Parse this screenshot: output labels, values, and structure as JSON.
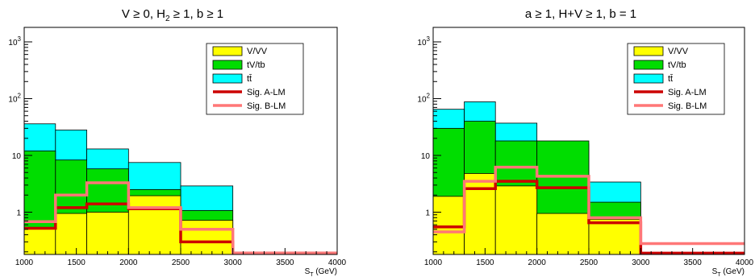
{
  "chart_data": [
    {
      "type": "area",
      "title": "V ≥ 0, H₂ ≥ 1, b ≥ 1",
      "title_parts": {
        "pre": "V ≥ 0, H",
        "sub": "2",
        "post": " ≥ 1, b ≥ 1"
      },
      "xlabel": "S_T (GeV)",
      "xlabel_parts": {
        "pre": "S",
        "sub": "T",
        "post": " (GeV)"
      },
      "ylabel": "",
      "xlim": [
        1000,
        4000
      ],
      "ylim": [
        0.18,
        1800
      ],
      "yscale": "log",
      "x_tick_labels": [
        "1000",
        "1500",
        "2000",
        "2500",
        "3000",
        "3500",
        "4000"
      ],
      "x_ticks": [
        1000,
        1500,
        2000,
        2500,
        3000,
        3500,
        4000
      ],
      "y_ticks": [
        {
          "value": 1,
          "label": "1"
        },
        {
          "value": 10,
          "label": "10"
        },
        {
          "value": 100,
          "label": "10²",
          "base": "10",
          "exp": "2"
        },
        {
          "value": 1000,
          "label": "10³",
          "base": "10",
          "exp": "3"
        }
      ],
      "bin_edges": [
        1000,
        1300,
        1600,
        2000,
        2500,
        3000,
        3500,
        4000
      ],
      "series": [
        {
          "name": "V/VV",
          "kind": "stack",
          "color": "#ffff00",
          "values": [
            0.52,
            0.95,
            1.0,
            1.95,
            0.72,
            0.0,
            0.0
          ]
        },
        {
          "name": "tV/tb",
          "kind": "stack",
          "color": "#00dd00",
          "values": [
            12.0,
            8.3,
            5.8,
            2.5,
            1.07,
            0.0,
            0.0
          ]
        },
        {
          "name": "tt̄",
          "kind": "stack",
          "color": "#00ffff",
          "values": [
            36.0,
            28.0,
            13.0,
            7.5,
            2.9,
            0.0,
            0.0
          ]
        },
        {
          "name": "Sig. A-LM",
          "kind": "line",
          "color": "#cc0000",
          "width": 3.5,
          "values": [
            0.52,
            1.2,
            1.4,
            1.15,
            0.3,
            0.19,
            0.19
          ]
        },
        {
          "name": "Sig. B-LM",
          "kind": "line",
          "color": "#ff7777",
          "width": 3.5,
          "values": [
            0.68,
            2.0,
            3.3,
            1.2,
            0.5,
            0.19,
            0.19
          ]
        }
      ],
      "legend": {
        "placement": "top-right",
        "entries": [
          "V/VV",
          "tV/tb",
          "tt̄",
          "Sig. A-LM",
          "Sig. B-LM"
        ]
      },
      "grid": false
    },
    {
      "type": "area",
      "title": "a ≥ 1, H+V ≥ 1, b = 1",
      "title_parts": {
        "pre": "a ≥ 1, H+V ≥ 1, b = 1",
        "sub": "",
        "post": ""
      },
      "xlabel": "S_T (GeV)",
      "xlabel_parts": {
        "pre": "S",
        "sub": "T",
        "post": " (GeV)"
      },
      "ylabel": "",
      "xlim": [
        1000,
        4000
      ],
      "ylim": [
        0.18,
        1800
      ],
      "yscale": "log",
      "x_tick_labels": [
        "1000",
        "1500",
        "2000",
        "2500",
        "3000",
        "3500",
        "4000"
      ],
      "x_ticks": [
        1000,
        1500,
        2000,
        2500,
        3000,
        3500,
        4000
      ],
      "y_ticks": [
        {
          "value": 1,
          "label": "1"
        },
        {
          "value": 10,
          "label": "10"
        },
        {
          "value": 100,
          "label": "10²",
          "base": "10",
          "exp": "2"
        },
        {
          "value": 1000,
          "label": "10³",
          "base": "10",
          "exp": "3"
        }
      ],
      "bin_edges": [
        1000,
        1300,
        1600,
        2000,
        2500,
        3000,
        3500,
        4000
      ],
      "series": [
        {
          "name": "V/VV",
          "kind": "stack",
          "color": "#ffff00",
          "values": [
            1.9,
            4.8,
            2.9,
            0.95,
            0.75,
            0.0,
            0.0
          ]
        },
        {
          "name": "tV/tb",
          "kind": "stack",
          "color": "#00dd00",
          "values": [
            30.0,
            40.0,
            18.0,
            18.0,
            1.5,
            0.0,
            0.0
          ]
        },
        {
          "name": "tt̄",
          "kind": "stack",
          "color": "#00ffff",
          "values": [
            65.0,
            88.0,
            37.0,
            16.0,
            3.4,
            0.0,
            0.0
          ]
        },
        {
          "name": "Sig. A-LM",
          "kind": "line",
          "color": "#cc0000",
          "width": 3.5,
          "values": [
            0.55,
            2.6,
            3.5,
            2.7,
            0.65,
            0.19,
            0.19
          ]
        },
        {
          "name": "Sig. B-LM",
          "kind": "line",
          "color": "#ff7777",
          "width": 3.5,
          "values": [
            0.45,
            3.5,
            6.2,
            4.3,
            0.8,
            0.28,
            0.28
          ]
        }
      ],
      "legend": {
        "placement": "top-right",
        "entries": [
          "V/VV",
          "tV/tb",
          "tt̄",
          "Sig. A-LM",
          "Sig. B-LM"
        ]
      },
      "grid": false
    }
  ]
}
